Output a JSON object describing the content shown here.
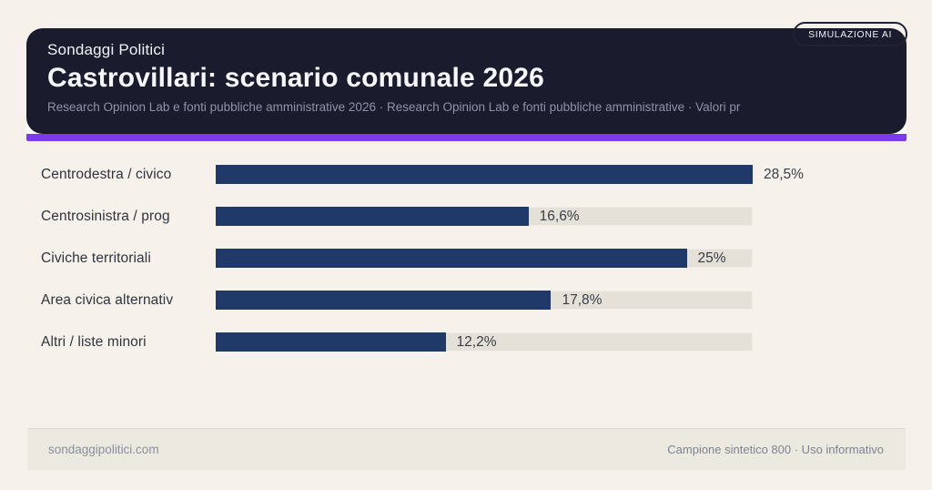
{
  "badge": {
    "label": "SIMULAZIONE AI"
  },
  "header": {
    "kicker": "Sondaggi Politici",
    "title": "Castrovillari: scenario comunale 2026",
    "subtitle": "Research Opinion Lab e fonti pubbliche amministrative 2026 · Research Opinion Lab e fonti pubbliche amministrative · Valori pr"
  },
  "chart_data": {
    "type": "bar",
    "orientation": "horizontal",
    "categories": [
      "Centrodestra / civico",
      "Centrosinistra / prog",
      "Civiche territoriali",
      "Area civica alternativ",
      "Altri / liste minori"
    ],
    "values": [
      28.5,
      16.6,
      25,
      17.8,
      12.2
    ],
    "value_labels": [
      "28,5%",
      "16,6%",
      "25%",
      "17,8%",
      "12,2%"
    ],
    "max_value": 28.5,
    "unit": "%",
    "bar_color": "#1f3a68",
    "track_color": "#e5e1d8",
    "grid": false,
    "legend": false
  },
  "footer": {
    "left": "sondaggipolitici.com",
    "right": "Campione sintetico 800 · Uso informativo"
  },
  "colors": {
    "page_background": "#f6f1ea",
    "card_background": "#1a1b2d",
    "accent": "#7c3aed",
    "bar": "#1f3a68",
    "track": "#e5e1d8"
  }
}
